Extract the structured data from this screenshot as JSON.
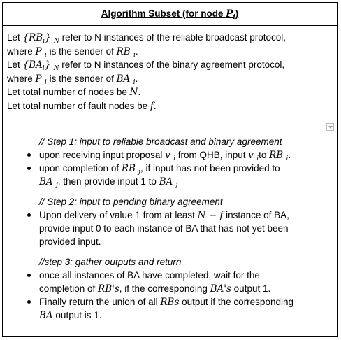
{
  "title": {
    "text": "Algorithm Subset (for node ",
    "node": "P",
    "node_sub": "i",
    "close": ")"
  },
  "definitions": {
    "line1": {
      "pre": "Let ",
      "sym": "{RB",
      "sym_sub": "i",
      "sym_close": "}",
      "sym_sub2": "N",
      "post": " refer to N instances of the reliable broadcast protocol,"
    },
    "line2": {
      "pre": "where ",
      "sym": "P",
      "sym_sub": "i",
      "mid": " is the sender of ",
      "sym2": "RB",
      "sym2_sub": "i",
      "post": "."
    },
    "line3": {
      "pre": "Let ",
      "sym": "{BA",
      "sym_sub": "i",
      "sym_close": "}",
      "sym_sub2": "N",
      "post": " refer to N instances of the binary agreement protocol,"
    },
    "line4": {
      "pre": "where ",
      "sym": "P",
      "sym_sub": "i",
      "mid": " is the sender of ",
      "sym2": "BA",
      "sym2_sub": "i",
      "post": "."
    },
    "line5": {
      "pre": "Let total number of nodes be ",
      "sym": "N",
      "post": "."
    },
    "line6": {
      "pre": "Let total number of fault nodes be ",
      "sym": "f",
      "post": "."
    }
  },
  "algorithm": {
    "step1": {
      "comment": "// Step 1: input to reliable broadcast and binary agreement",
      "b1": {
        "pre": "upon receiving input proposal ",
        "v": "v",
        "v_sub": "i",
        "mid": " from QHB, input ",
        "v2": "v",
        "v2_sub": "i",
        "mid2": "to ",
        "rb": "RB",
        "rb_sub": "i",
        "post": "."
      },
      "b2": {
        "pre": "upon completion of ",
        "rb": "RB",
        "rb_sub": "j",
        "post": ", if input has not been provided to",
        "ba": "BA",
        "ba_sub": "j",
        "mid": ", then provide input 1 to ",
        "ba2": "BA",
        "ba2_sub": "j"
      }
    },
    "step2": {
      "comment": "// Step 2: input to pending binary agreement",
      "b1": {
        "pre": "Upon delivery of value 1 from at least ",
        "expr": "N − f",
        "post": " instance of BA,",
        "line2": "provide input 0 to each instance of BA that has not yet been",
        "line3": "provided input."
      }
    },
    "step3": {
      "comment": "//step 3: gather outputs and return",
      "b1": {
        "line1": "once all instances of BA have completed, wait for the",
        "pre": "completion of ",
        "rbs": "RB's",
        "mid": ", if the corresponding ",
        "bas": "BA's",
        "post": " output 1."
      },
      "b2": {
        "pre": "Finally return the union of all ",
        "rbs": "RBs",
        "post": " output if the corresponding",
        "ba": "BA",
        "post2": " output is 1."
      }
    }
  }
}
